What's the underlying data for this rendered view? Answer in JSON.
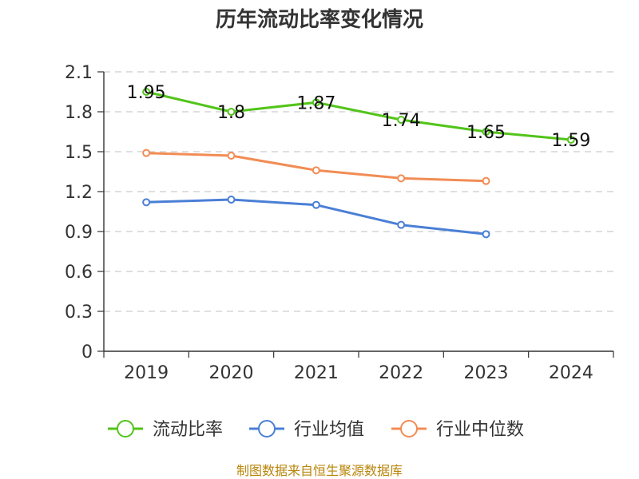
{
  "chart_data": {
    "type": "line",
    "title": "历年流动比率变化情况",
    "categories": [
      "2019",
      "2020",
      "2021",
      "2022",
      "2023",
      "2024"
    ],
    "ylim": [
      0,
      2.1
    ],
    "yticks": [
      "0",
      "0.3",
      "0.6",
      "0.9",
      "1.2",
      "1.5",
      "1.8",
      "2.1"
    ],
    "grid": true,
    "legend_position": "bottom",
    "series": [
      {
        "name": "流动比率",
        "color": "#52c41a",
        "values": [
          1.95,
          1.8,
          1.87,
          1.74,
          1.65,
          1.59
        ],
        "labels": [
          "1.95",
          "1.8",
          "1.87",
          "1.74",
          "1.65",
          "1.59"
        ]
      },
      {
        "name": "行业均值",
        "color": "#4a7fd6",
        "values": [
          1.12,
          1.14,
          1.1,
          0.95,
          0.88,
          null
        ]
      },
      {
        "name": "行业中位数",
        "color": "#f28c54",
        "values": [
          1.49,
          1.47,
          1.36,
          1.3,
          1.28,
          null
        ]
      }
    ],
    "source": "制图数据来自恒生聚源数据库"
  }
}
